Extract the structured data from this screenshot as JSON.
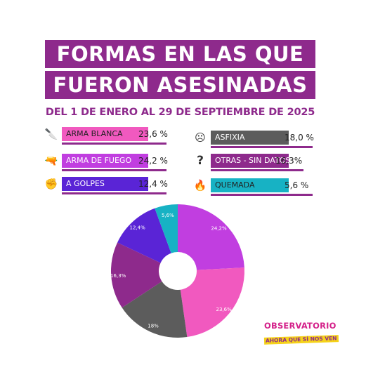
{
  "header": {
    "title_line1": "FORMAS EN LAS QUE",
    "title_line2": "FUERON ASESINADAS",
    "subtitle": "DEL 1 DE ENERO AL 29 DE SEPTIEMBRE DE 2025"
  },
  "legend": [
    {
      "label": "ARMA BLANCA",
      "pct_text": "23,6 %",
      "icon": "knife-icon",
      "glyph": "🔪",
      "color": "#f159bf",
      "text_color": "#222222"
    },
    {
      "label": "ARMA DE FUEGO",
      "pct_text": "24,2 %",
      "icon": "gun-icon",
      "glyph": "🔫",
      "color": "#c13ee0",
      "text_color": "#ffffff"
    },
    {
      "label": "A GOLPES",
      "pct_text": "12,4 %",
      "icon": "fist-icon",
      "glyph": "✊",
      "color": "#5a24d6",
      "text_color": "#ffffff"
    },
    {
      "label": "ASFIXIA",
      "pct_text": "18,0 %",
      "icon": "dizzy-face-icon",
      "glyph": "☹",
      "color": "#5c5c5c",
      "text_color": "#ffffff"
    },
    {
      "label": "OTRAS - SIN DATOS",
      "pct_text": "16,3%",
      "icon": "question-icon",
      "glyph": "?",
      "color": "#8e2a8c",
      "text_color": "#ffffff"
    },
    {
      "label": "QUEMADA",
      "pct_text": "5,6 %",
      "icon": "fire-icon",
      "glyph": "🔥",
      "color": "#17b2c4",
      "text_color": "#222222"
    }
  ],
  "chart_data": {
    "type": "pie",
    "donut": true,
    "slices": [
      {
        "label": "ARMA DE FUEGO",
        "value": 24.2,
        "data_label": "24,2%",
        "color": "#c13ee0"
      },
      {
        "label": "ARMA BLANCA",
        "value": 23.6,
        "data_label": "23,6%",
        "color": "#f159bf"
      },
      {
        "label": "ASFIXIA",
        "value": 18.0,
        "data_label": "18%",
        "color": "#5c5c5c"
      },
      {
        "label": "OTRAS - SIN DATOS",
        "value": 16.3,
        "data_label": "16,3%",
        "color": "#8e2a8c"
      },
      {
        "label": "A GOLPES",
        "value": 12.4,
        "data_label": "12,4%",
        "color": "#5a24d6"
      },
      {
        "label": "QUEMADA",
        "value": 5.6,
        "data_label": "5,6%",
        "color": "#17b2c4"
      }
    ]
  },
  "logo": {
    "line1": "OBSERVATORIO",
    "line2": "AHORA QUE SÍ NOS VEN"
  }
}
